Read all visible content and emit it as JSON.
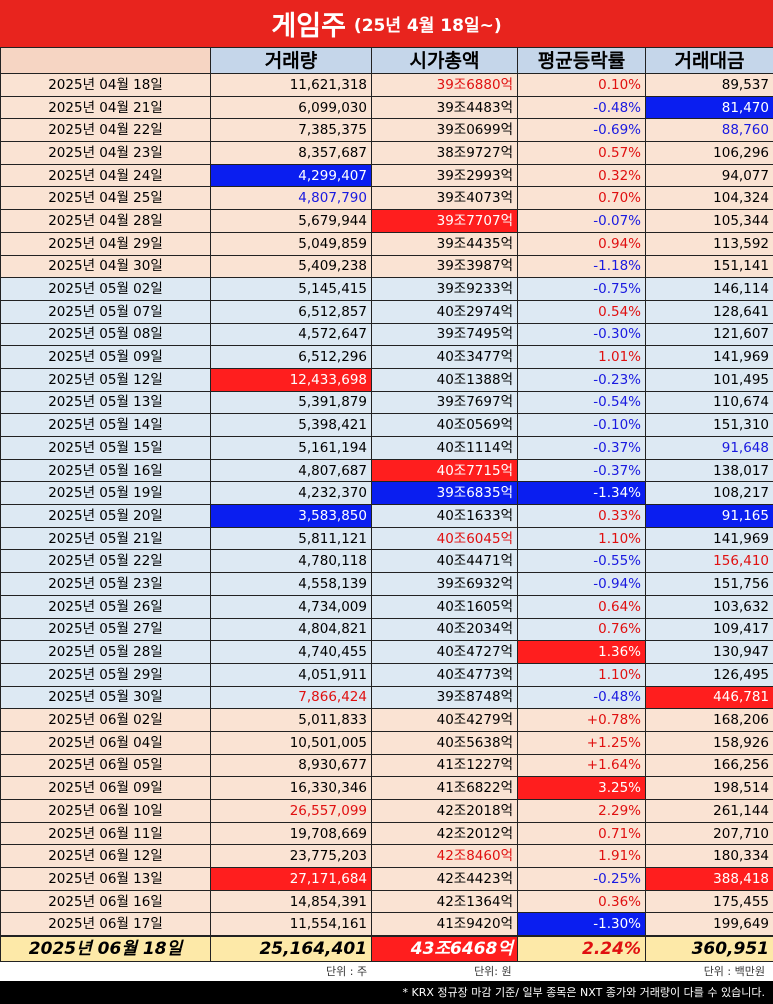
{
  "title": {
    "main": "게임주",
    "sub": "(25년 4월 18일~)"
  },
  "columns": [
    "거래량",
    "시가총액",
    "평균등락률",
    "거래대금"
  ],
  "rows": [
    {
      "g": "apr",
      "date": "2025년 04월 18일",
      "vol": "11,621,318",
      "cap": "39조6880억",
      "rate": "0.10%",
      "amt": "89,537",
      "cl": {
        "cap": "red",
        "rate": "red"
      }
    },
    {
      "g": "apr",
      "date": "2025년 04월 21일",
      "vol": "6,099,030",
      "cap": "39조4483억",
      "rate": "-0.48%",
      "amt": "81,470",
      "cl": {
        "rate": "blue",
        "amt": "hl-blue"
      }
    },
    {
      "g": "apr",
      "date": "2025년 04월 22일",
      "vol": "7,385,375",
      "cap": "39조0699억",
      "rate": "-0.69%",
      "amt": "88,760",
      "cl": {
        "rate": "blue",
        "amt": "blue"
      }
    },
    {
      "g": "apr",
      "date": "2025년 04월 23일",
      "vol": "8,357,687",
      "cap": "38조9727억",
      "rate": "0.57%",
      "amt": "106,296",
      "cl": {
        "rate": "red"
      }
    },
    {
      "g": "apr",
      "date": "2025년 04월 24일",
      "vol": "4,299,407",
      "cap": "39조2993억",
      "rate": "0.32%",
      "amt": "94,077",
      "cl": {
        "vol": "hl-blue",
        "rate": "red"
      }
    },
    {
      "g": "apr",
      "date": "2025년 04월 25일",
      "vol": "4,807,790",
      "cap": "39조4073억",
      "rate": "0.70%",
      "amt": "104,324",
      "cl": {
        "vol": "blue",
        "rate": "red"
      }
    },
    {
      "g": "apr",
      "date": "2025년 04월 28일",
      "vol": "5,679,944",
      "cap": "39조7707억",
      "rate": "-0.07%",
      "amt": "105,344",
      "cl": {
        "cap": "hl-red",
        "rate": "blue"
      }
    },
    {
      "g": "apr",
      "date": "2025년 04월 29일",
      "vol": "5,049,859",
      "cap": "39조4435억",
      "rate": "0.94%",
      "amt": "113,592",
      "cl": {
        "rate": "red"
      }
    },
    {
      "g": "apr",
      "date": "2025년 04월 30일",
      "vol": "5,409,238",
      "cap": "39조3987억",
      "rate": "-1.18%",
      "amt": "151,141",
      "cl": {
        "rate": "blue"
      }
    },
    {
      "g": "may",
      "date": "2025년 05월 02일",
      "vol": "5,145,415",
      "cap": "39조9233억",
      "rate": "-0.75%",
      "amt": "146,114",
      "cl": {
        "rate": "blue"
      }
    },
    {
      "g": "may",
      "date": "2025년 05월 07일",
      "vol": "6,512,857",
      "cap": "40조2974억",
      "rate": "0.54%",
      "amt": "128,641",
      "cl": {
        "rate": "red"
      }
    },
    {
      "g": "may",
      "date": "2025년 05월 08일",
      "vol": "4,572,647",
      "cap": "39조7495억",
      "rate": "-0.30%",
      "amt": "121,607",
      "cl": {
        "rate": "blue"
      }
    },
    {
      "g": "may",
      "date": "2025년 05월 09일",
      "vol": "6,512,296",
      "cap": "40조3477억",
      "rate": "1.01%",
      "amt": "141,969",
      "cl": {
        "rate": "red"
      }
    },
    {
      "g": "may",
      "date": "2025년 05월 12일",
      "vol": "12,433,698",
      "cap": "40조1388억",
      "rate": "-0.23%",
      "amt": "101,495",
      "cl": {
        "vol": "hl-red",
        "rate": "blue"
      }
    },
    {
      "g": "may",
      "date": "2025년 05월 13일",
      "vol": "5,391,879",
      "cap": "39조7697억",
      "rate": "-0.54%",
      "amt": "110,674",
      "cl": {
        "rate": "blue"
      }
    },
    {
      "g": "may",
      "date": "2025년 05월 14일",
      "vol": "5,398,421",
      "cap": "40조0569억",
      "rate": "-0.10%",
      "amt": "151,310",
      "cl": {
        "rate": "blue"
      }
    },
    {
      "g": "may",
      "date": "2025년 05월 15일",
      "vol": "5,161,194",
      "cap": "40조1114억",
      "rate": "-0.37%",
      "amt": "91,648",
      "cl": {
        "rate": "blue",
        "amt": "blue"
      }
    },
    {
      "g": "may",
      "date": "2025년 05월 16일",
      "vol": "4,807,687",
      "cap": "40조7715억",
      "rate": "-0.37%",
      "amt": "138,017",
      "cl": {
        "cap": "hl-red",
        "rate": "blue"
      }
    },
    {
      "g": "may",
      "date": "2025년 05월 19일",
      "vol": "4,232,370",
      "cap": "39조6835억",
      "rate": "-1.34%",
      "amt": "108,217",
      "cl": {
        "cap": "hl-blue",
        "rate": "hl-blue"
      }
    },
    {
      "g": "may",
      "date": "2025년 05월 20일",
      "vol": "3,583,850",
      "cap": "40조1633억",
      "rate": "0.33%",
      "amt": "91,165",
      "cl": {
        "vol": "hl-blue",
        "rate": "red",
        "amt": "hl-blue"
      }
    },
    {
      "g": "may",
      "date": "2025년 05월 21일",
      "vol": "5,811,121",
      "cap": "40조6045억",
      "rate": "1.10%",
      "amt": "141,969",
      "cl": {
        "cap": "red",
        "rate": "red"
      }
    },
    {
      "g": "may",
      "date": "2025년 05월 22일",
      "vol": "4,780,118",
      "cap": "40조4471억",
      "rate": "-0.55%",
      "amt": "156,410",
      "cl": {
        "rate": "blue",
        "amt": "red"
      }
    },
    {
      "g": "may",
      "date": "2025년 05월 23일",
      "vol": "4,558,139",
      "cap": "39조6932억",
      "rate": "-0.94%",
      "amt": "151,756",
      "cl": {
        "rate": "blue"
      }
    },
    {
      "g": "may",
      "date": "2025년 05월 26일",
      "vol": "4,734,009",
      "cap": "40조1605억",
      "rate": "0.64%",
      "amt": "103,632",
      "cl": {
        "rate": "red"
      }
    },
    {
      "g": "may",
      "date": "2025년 05월 27일",
      "vol": "4,804,821",
      "cap": "40조2034억",
      "rate": "0.76%",
      "amt": "109,417",
      "cl": {
        "rate": "red"
      }
    },
    {
      "g": "may",
      "date": "2025년 05월 28일",
      "vol": "4,740,455",
      "cap": "40조4727억",
      "rate": "1.36%",
      "amt": "130,947",
      "cl": {
        "rate": "hl-red"
      }
    },
    {
      "g": "may",
      "date": "2025년 05월 29일",
      "vol": "4,051,911",
      "cap": "40조4773억",
      "rate": "1.10%",
      "amt": "126,495",
      "cl": {
        "rate": "red"
      }
    },
    {
      "g": "may",
      "date": "2025년 05월 30일",
      "vol": "7,866,424",
      "cap": "39조8748억",
      "rate": "-0.48%",
      "amt": "446,781",
      "cl": {
        "vol": "red",
        "rate": "blue",
        "amt": "hl-red"
      }
    },
    {
      "g": "jun",
      "date": "2025년 06월 02일",
      "vol": "5,011,833",
      "cap": "40조4279억",
      "rate": "+0.78%",
      "amt": "168,206",
      "cl": {
        "rate": "red"
      }
    },
    {
      "g": "jun",
      "date": "2025년 06월 04일",
      "vol": "10,501,005",
      "cap": "40조5638억",
      "rate": "+1.25%",
      "amt": "158,926",
      "cl": {
        "rate": "red"
      }
    },
    {
      "g": "jun",
      "date": "2025년 06월 05일",
      "vol": "8,930,677",
      "cap": "41조1227억",
      "rate": "+1.64%",
      "amt": "166,256",
      "cl": {
        "rate": "red"
      }
    },
    {
      "g": "jun",
      "date": "2025년 06월 09일",
      "vol": "16,330,346",
      "cap": "41조6822억",
      "rate": "3.25%",
      "amt": "198,514",
      "cl": {
        "rate": "hl-red"
      }
    },
    {
      "g": "jun",
      "date": "2025년 06월 10일",
      "vol": "26,557,099",
      "cap": "42조2018억",
      "rate": "2.29%",
      "amt": "261,144",
      "cl": {
        "vol": "red",
        "rate": "red"
      }
    },
    {
      "g": "jun",
      "date": "2025년 06월 11일",
      "vol": "19,708,669",
      "cap": "42조2012억",
      "rate": "0.71%",
      "amt": "207,710",
      "cl": {
        "rate": "red"
      }
    },
    {
      "g": "jun",
      "date": "2025년 06월 12일",
      "vol": "23,775,203",
      "cap": "42조8460억",
      "rate": "1.91%",
      "amt": "180,334",
      "cl": {
        "cap": "red",
        "rate": "red"
      }
    },
    {
      "g": "jun",
      "date": "2025년 06월 13일",
      "vol": "27,171,684",
      "cap": "42조4423억",
      "rate": "-0.25%",
      "amt": "388,418",
      "cl": {
        "vol": "hl-red",
        "rate": "blue",
        "amt": "hl-red"
      }
    },
    {
      "g": "jun",
      "date": "2025년 06월 16일",
      "vol": "14,854,391",
      "cap": "42조1364억",
      "rate": "0.36%",
      "amt": "175,455",
      "cl": {
        "rate": "red"
      }
    },
    {
      "g": "jun",
      "date": "2025년 06월 17일",
      "vol": "11,554,161",
      "cap": "41조9420억",
      "rate": "-1.30%",
      "amt": "199,649",
      "cl": {
        "rate": "hl-blue"
      }
    }
  ],
  "final": {
    "date": "2025년 06월 18일",
    "vol": "25,164,401",
    "cap": "43조6468억",
    "rate": "2.24%",
    "amt": "360,951"
  },
  "units": {
    "vol": "단위 : 주",
    "cap": "단위: 원",
    "amt": "단위 : 백만원"
  },
  "footer": "* KRX 정규장 마감 기준/ 일부 종목은 NXT 종가와 거래량이 다를 수 있습니다.",
  "colors": {
    "title_bg": "#e8241e",
    "header_bg": "#c5d6ea",
    "highlight_red": "#ff1e1e",
    "highlight_blue": "#0a1ef0",
    "text_red": "#e01010",
    "text_blue": "#1a1ae0"
  }
}
